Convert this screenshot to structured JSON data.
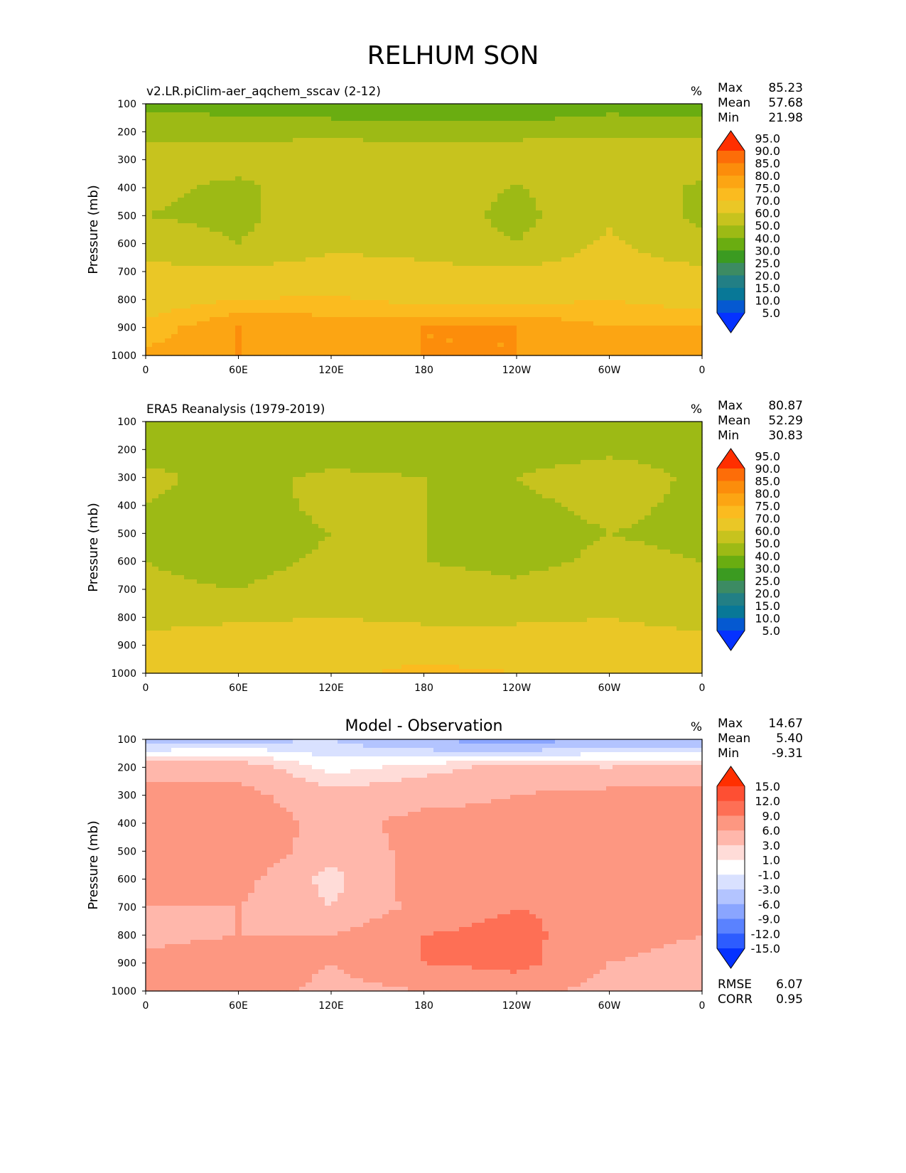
{
  "title": "RELHUM SON",
  "chart_data": [
    {
      "type": "heatmap",
      "title": "v2.LR.piClim-aer_aqchem_sscav (2-12)",
      "title_position": "left",
      "units": "%",
      "ylabel": "Pressure (mb)",
      "yticks": [
        "100",
        "200",
        "300",
        "400",
        "500",
        "600",
        "700",
        "800",
        "900",
        "1000"
      ],
      "xticks": [
        "0",
        "60E",
        "120E",
        "180",
        "120W",
        "60W",
        "0"
      ],
      "ylim": [
        1000,
        100
      ],
      "stats": [
        {
          "label": "Max",
          "value": "85.23"
        },
        {
          "label": "Mean",
          "value": "57.68"
        },
        {
          "label": "Min",
          "value": "21.98"
        }
      ],
      "colorbar": {
        "levels": [
          "5.0",
          "10.0",
          "15.0",
          "20.0",
          "25.0",
          "30.0",
          "40.0",
          "50.0",
          "60.0",
          "70.0",
          "75.0",
          "80.0",
          "85.0",
          "90.0",
          "95.0"
        ],
        "colors": [
          "#0532ff",
          "#0559d1",
          "#087897",
          "#227f85",
          "#3c8b63",
          "#3b9b21",
          "#6aad11",
          "#9dba15",
          "#c7c31e",
          "#eac726",
          "#fbbb1f",
          "#fca513",
          "#fc8d0b",
          "#fd6d08",
          "#ff2f00"
        ]
      },
      "field": {
        "x": [
          "0",
          "60E",
          "120E",
          "180",
          "120W",
          "60W",
          "0"
        ],
        "y": [
          100,
          200,
          300,
          400,
          500,
          600,
          700,
          800,
          900,
          1000
        ],
        "values": [
          [
            37,
            35,
            32,
            29,
            29,
            36,
            33
          ],
          [
            47,
            47,
            47,
            46,
            47,
            47,
            48
          ],
          [
            55,
            56,
            58,
            58,
            57,
            60,
            56
          ],
          [
            53,
            47,
            58,
            57,
            49,
            58,
            48
          ],
          [
            50,
            47,
            58,
            55,
            47,
            58,
            48
          ],
          [
            57,
            50,
            58,
            57,
            50,
            62,
            52
          ],
          [
            62,
            62,
            64,
            62,
            62,
            65,
            62
          ],
          [
            66,
            70,
            71,
            68,
            68,
            70,
            67
          ],
          [
            72,
            80,
            78,
            80,
            80,
            75,
            76
          ],
          [
            76,
            80,
            75,
            80,
            80,
            78,
            78
          ]
        ]
      }
    },
    {
      "type": "heatmap",
      "title": "ERA5 Reanalysis (1979-2019)",
      "title_position": "left",
      "units": "%",
      "ylabel": "Pressure (mb)",
      "yticks": [
        "100",
        "200",
        "300",
        "400",
        "500",
        "600",
        "700",
        "800",
        "900",
        "1000"
      ],
      "xticks": [
        "0",
        "60E",
        "120E",
        "180",
        "120W",
        "60W",
        "0"
      ],
      "ylim": [
        1000,
        100
      ],
      "stats": [
        {
          "label": "Max",
          "value": "80.87"
        },
        {
          "label": "Mean",
          "value": "52.29"
        },
        {
          "label": "Min",
          "value": "30.83"
        }
      ],
      "colorbar": {
        "levels": [
          "5.0",
          "10.0",
          "15.0",
          "20.0",
          "25.0",
          "30.0",
          "40.0",
          "50.0",
          "60.0",
          "70.0",
          "75.0",
          "80.0",
          "85.0",
          "90.0",
          "95.0"
        ],
        "colors": [
          "#0532ff",
          "#0559d1",
          "#087897",
          "#227f85",
          "#3c8b63",
          "#3b9b21",
          "#6aad11",
          "#9dba15",
          "#c7c31e",
          "#eac726",
          "#fbbb1f",
          "#fca513",
          "#fc8d0b",
          "#fd6d08",
          "#ff2f00"
        ]
      },
      "field": {
        "x": [
          "0",
          "60E",
          "120E",
          "180",
          "120W",
          "60W",
          "0"
        ],
        "y": [
          100,
          200,
          300,
          400,
          500,
          600,
          700,
          800,
          900,
          1000
        ],
        "values": [
          [
            46,
            44,
            48,
            45,
            45,
            48,
            46
          ],
          [
            47,
            45,
            45,
            45,
            46,
            48,
            47
          ],
          [
            52,
            47,
            52,
            50,
            50,
            55,
            48
          ],
          [
            50,
            45,
            53,
            50,
            48,
            52,
            48
          ],
          [
            50,
            44,
            50,
            50,
            46,
            50,
            48
          ],
          [
            50,
            46,
            52,
            50,
            47,
            52,
            50
          ],
          [
            52,
            50,
            56,
            55,
            52,
            58,
            52
          ],
          [
            56,
            58,
            60,
            58,
            58,
            60,
            56
          ],
          [
            64,
            68,
            68,
            66,
            66,
            65,
            64
          ],
          [
            66,
            70,
            68,
            72,
            70,
            70,
            66
          ]
        ]
      }
    },
    {
      "type": "heatmap",
      "title": "Model - Observation",
      "title_position": "center",
      "units": "%",
      "ylabel": "Pressure (mb)",
      "yticks": [
        "100",
        "200",
        "300",
        "400",
        "500",
        "600",
        "700",
        "800",
        "900",
        "1000"
      ],
      "xticks": [
        "0",
        "60E",
        "120E",
        "180",
        "120W",
        "60W",
        "0"
      ],
      "ylim": [
        1000,
        100
      ],
      "stats": [
        {
          "label": "Max",
          "value": "14.67"
        },
        {
          "label": "Mean",
          "value": "5.40"
        },
        {
          "label": "Min",
          "value": "-9.31"
        }
      ],
      "extra_stats": [
        {
          "label": "RMSE",
          "value": "6.07"
        },
        {
          "label": "CORR",
          "value": "0.95"
        }
      ],
      "colorbar": {
        "levels": [
          "-15.0",
          "-12.0",
          "-9.0",
          "-6.0",
          "-3.0",
          "-1.0",
          "1.0",
          "3.0",
          "6.0",
          "9.0",
          "12.0",
          "15.0"
        ],
        "colors": [
          "#0532ff",
          "#2d5cff",
          "#5a82ff",
          "#8aa5ff",
          "#b3c4ff",
          "#d9e1ff",
          "#ffffff",
          "#ffdcd8",
          "#ffb7ab",
          "#fd9781",
          "#fe6f55",
          "#fe4f33",
          "#ff2f00"
        ]
      },
      "field": {
        "x": [
          "0",
          "60E",
          "120E",
          "180",
          "120W",
          "60W",
          "0"
        ],
        "y": [
          100,
          200,
          300,
          400,
          500,
          600,
          700,
          800,
          900,
          1000
        ],
        "values": [
          [
            -5,
            -4,
            -3,
            -6,
            -8,
            -5,
            -6
          ],
          [
            5,
            5,
            0,
            2,
            4,
            3,
            4
          ],
          [
            7,
            7,
            4,
            5,
            6,
            7,
            7
          ],
          [
            7,
            8,
            5,
            7,
            7,
            8,
            7
          ],
          [
            7,
            9,
            4,
            7,
            7,
            8,
            8
          ],
          [
            6,
            7,
            2,
            8,
            8,
            8,
            7
          ],
          [
            6,
            6,
            3,
            7,
            9,
            8,
            6
          ],
          [
            5,
            6,
            6,
            9,
            10,
            7,
            6
          ],
          [
            7,
            8,
            6,
            9,
            10,
            6,
            5
          ],
          [
            8,
            8,
            5,
            6,
            7,
            5,
            6
          ]
        ]
      }
    }
  ]
}
